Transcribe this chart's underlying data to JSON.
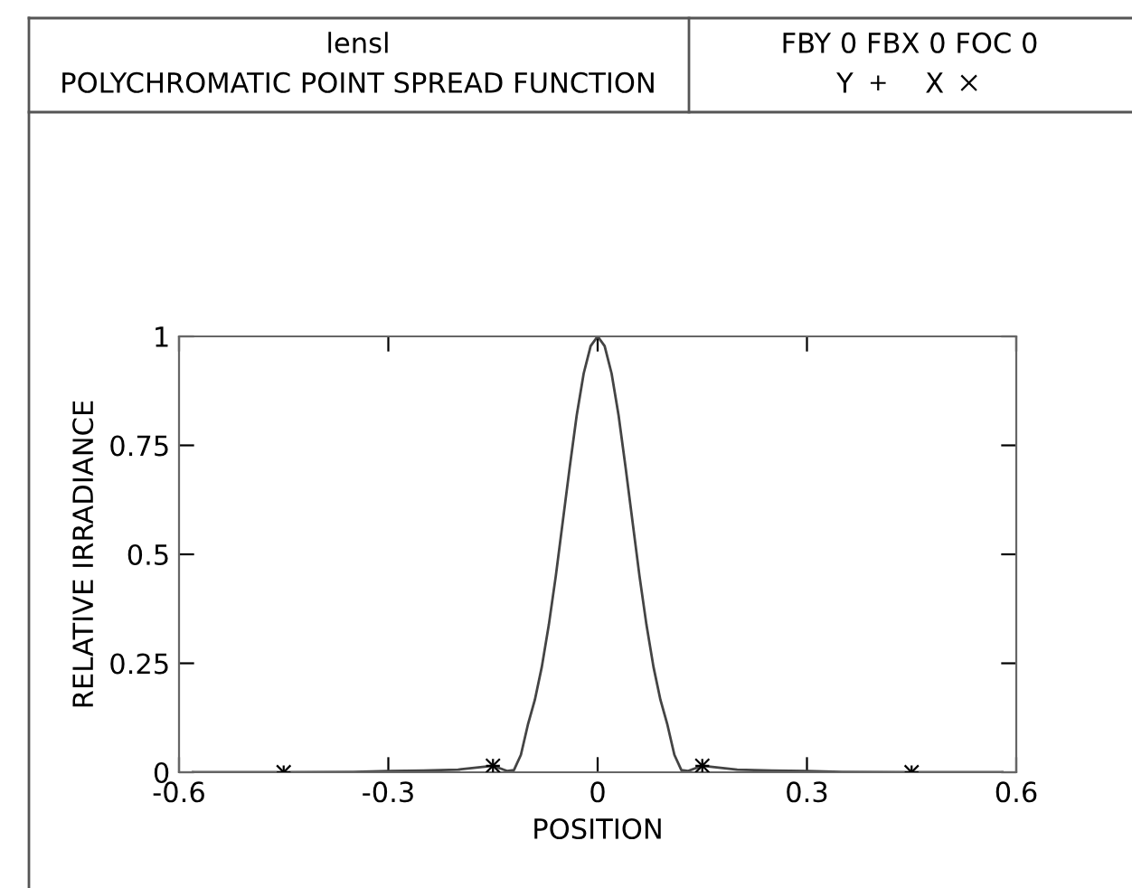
{
  "chart_data": {
    "type": "line",
    "title": "lensl",
    "subtitle": "POLYCHROMATIC POINT SPREAD FUNCTION",
    "annotations": [
      "FBY 0 FBX 0 FOC 0"
    ],
    "xlabel": "POSITION",
    "ylabel": "RELATIVE IRRADIANCE",
    "x": [
      -0.58,
      -0.45,
      -0.35,
      -0.3,
      -0.25,
      -0.2,
      -0.15,
      -0.13,
      -0.12,
      -0.11,
      -0.1,
      -0.09,
      -0.08,
      -0.07,
      -0.06,
      -0.05,
      -0.04,
      -0.03,
      -0.02,
      -0.01,
      0,
      0.01,
      0.02,
      0.03,
      0.04,
      0.05,
      0.06,
      0.07,
      0.08,
      0.09,
      0.1,
      0.11,
      0.12,
      0.13,
      0.15,
      0.2,
      0.25,
      0.3,
      0.35,
      0.45,
      0.58
    ],
    "series": [
      {
        "color": "#444444",
        "marker": "none",
        "values": [
          0,
          0,
          0.001,
          0.003,
          0.004,
          0.006,
          0.015,
          0.003,
          0.005,
          0.04,
          0.109,
          0.166,
          0.242,
          0.338,
          0.45,
          0.575,
          0.7,
          0.819,
          0.915,
          0.978,
          1,
          0.978,
          0.915,
          0.819,
          0.7,
          0.575,
          0.45,
          0.338,
          0.242,
          0.166,
          0.109,
          0.04,
          0.005,
          0.003,
          0.015,
          0.006,
          0.004,
          0.003,
          0.001,
          0,
          0
        ]
      },
      {
        "name": "Y",
        "type": "scatter",
        "color": "#000000",
        "marker": "cross",
        "x": [
          -0.45,
          -0.15,
          0.15,
          0.45
        ],
        "values": [
          0,
          0.015,
          0.015,
          0
        ]
      },
      {
        "name": "X",
        "type": "scatter",
        "color": "#000000",
        "marker": "x",
        "x": [
          -0.45,
          -0.15,
          0.15,
          0.45
        ],
        "values": [
          0,
          0.015,
          0.015,
          0
        ]
      }
    ],
    "xlim": [
      -0.6,
      0.6
    ],
    "xticks": [
      -0.6,
      -0.3,
      0,
      0.3,
      0.6
    ],
    "ylim": [
      0,
      1
    ],
    "yticks": [
      0,
      0.25,
      0.5,
      0.75,
      1
    ],
    "grid": false,
    "legend": "top right"
  }
}
